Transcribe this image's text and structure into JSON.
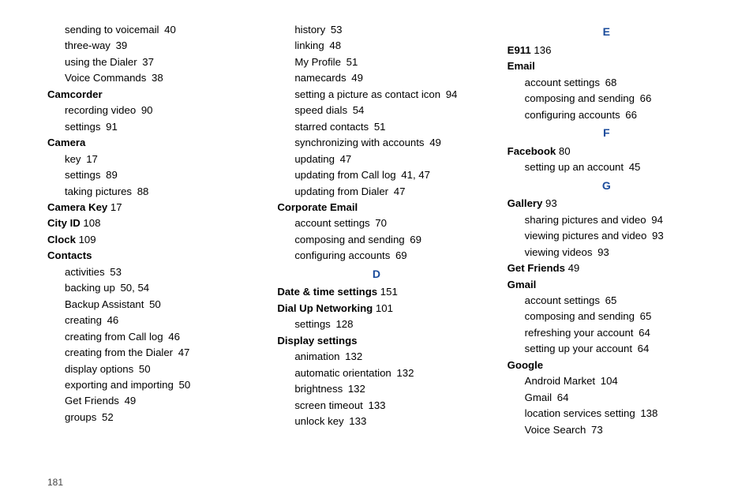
{
  "pageNumber": "181",
  "letters": {
    "D": "D",
    "E": "E",
    "F": "F",
    "G": "G"
  },
  "col1": [
    {
      "t": "sub",
      "label": "sending to voicemail",
      "page": "40"
    },
    {
      "t": "sub",
      "label": "three-way",
      "page": "39"
    },
    {
      "t": "sub",
      "label": "using the Dialer",
      "page": "37"
    },
    {
      "t": "sub",
      "label": "Voice Commands",
      "page": "38"
    },
    {
      "t": "topic",
      "label": "Camcorder"
    },
    {
      "t": "sub",
      "label": "recording video",
      "page": "90"
    },
    {
      "t": "sub",
      "label": "settings",
      "page": "91"
    },
    {
      "t": "topic",
      "label": "Camera"
    },
    {
      "t": "sub",
      "label": "key",
      "page": "17"
    },
    {
      "t": "sub",
      "label": "settings",
      "page": "89"
    },
    {
      "t": "sub",
      "label": "taking pictures",
      "page": "88"
    },
    {
      "t": "topic",
      "label": "Camera Key",
      "page": "17"
    },
    {
      "t": "topic",
      "label": "City ID",
      "page": "108"
    },
    {
      "t": "topic",
      "label": "Clock",
      "page": "109"
    },
    {
      "t": "topic",
      "label": "Contacts"
    },
    {
      "t": "sub",
      "label": "activities",
      "page": "53"
    },
    {
      "t": "sub",
      "label": "backing up",
      "page": "50, 54"
    },
    {
      "t": "sub",
      "label": "Backup Assistant",
      "page": "50"
    },
    {
      "t": "sub",
      "label": "creating",
      "page": "46"
    },
    {
      "t": "sub",
      "label": "creating from Call log",
      "page": "46"
    },
    {
      "t": "sub",
      "label": "creating from the Dialer",
      "page": "47"
    },
    {
      "t": "sub",
      "label": "display options",
      "page": "50"
    },
    {
      "t": "sub",
      "label": "exporting and importing",
      "page": "50"
    },
    {
      "t": "sub",
      "label": "Get Friends",
      "page": "49"
    },
    {
      "t": "sub",
      "label": "groups",
      "page": "52"
    }
  ],
  "col2": [
    {
      "t": "sub",
      "label": "history",
      "page": "53"
    },
    {
      "t": "sub",
      "label": "linking",
      "page": "48"
    },
    {
      "t": "sub",
      "label": "My Profile",
      "page": "51"
    },
    {
      "t": "sub",
      "label": "namecards",
      "page": "49"
    },
    {
      "t": "sub",
      "label": "setting a picture as contact icon",
      "page": "94"
    },
    {
      "t": "sub",
      "label": "speed dials",
      "page": "54"
    },
    {
      "t": "sub",
      "label": "starred contacts",
      "page": "51"
    },
    {
      "t": "sub",
      "label": "synchronizing with accounts",
      "page": "49"
    },
    {
      "t": "sub",
      "label": "updating",
      "page": "47"
    },
    {
      "t": "sub",
      "label": "updating from Call log",
      "page": "41, 47"
    },
    {
      "t": "sub",
      "label": "updating from Dialer",
      "page": "47"
    },
    {
      "t": "topic",
      "label": "Corporate Email"
    },
    {
      "t": "sub",
      "label": "account settings",
      "page": "70"
    },
    {
      "t": "sub",
      "label": "composing and sending",
      "page": "69"
    },
    {
      "t": "sub",
      "label": "configuring accounts",
      "page": "69"
    },
    {
      "t": "letter",
      "key": "D"
    },
    {
      "t": "topic",
      "label": "Date & time settings",
      "page": "151"
    },
    {
      "t": "topic",
      "label": "Dial Up Networking",
      "page": "101"
    },
    {
      "t": "sub",
      "label": "settings",
      "page": "128"
    },
    {
      "t": "topic",
      "label": "Display settings"
    },
    {
      "t": "sub",
      "label": "animation",
      "page": "132"
    },
    {
      "t": "sub",
      "label": "automatic orientation",
      "page": "132"
    },
    {
      "t": "sub",
      "label": "brightness",
      "page": "132"
    },
    {
      "t": "sub",
      "label": "screen timeout",
      "page": "133"
    },
    {
      "t": "sub",
      "label": "unlock key",
      "page": "133"
    }
  ],
  "col3": [
    {
      "t": "letter",
      "key": "E"
    },
    {
      "t": "topic",
      "label": "E911",
      "page": "136"
    },
    {
      "t": "topic",
      "label": "Email"
    },
    {
      "t": "sub",
      "label": "account settings",
      "page": "68"
    },
    {
      "t": "sub",
      "label": "composing and sending",
      "page": "66"
    },
    {
      "t": "sub",
      "label": "configuring accounts",
      "page": "66"
    },
    {
      "t": "letter",
      "key": "F"
    },
    {
      "t": "topic",
      "label": "Facebook",
      "page": "80"
    },
    {
      "t": "sub",
      "label": "setting up an account",
      "page": "45"
    },
    {
      "t": "letter",
      "key": "G"
    },
    {
      "t": "topic",
      "label": "Gallery",
      "page": "93"
    },
    {
      "t": "sub",
      "label": "sharing pictures and video",
      "page": "94"
    },
    {
      "t": "sub",
      "label": "viewing pictures and video",
      "page": "93"
    },
    {
      "t": "sub",
      "label": "viewing videos",
      "page": "93"
    },
    {
      "t": "topic",
      "label": "Get Friends",
      "page": "49"
    },
    {
      "t": "topic",
      "label": "Gmail"
    },
    {
      "t": "sub",
      "label": "account settings",
      "page": "65"
    },
    {
      "t": "sub",
      "label": "composing and sending",
      "page": "65"
    },
    {
      "t": "sub",
      "label": "refreshing your account",
      "page": "64"
    },
    {
      "t": "sub",
      "label": "setting up your account",
      "page": "64"
    },
    {
      "t": "topic",
      "label": "Google"
    },
    {
      "t": "sub",
      "label": "Android Market",
      "page": "104"
    },
    {
      "t": "sub",
      "label": "Gmail",
      "page": "64"
    },
    {
      "t": "sub",
      "label": "location services setting",
      "page": "138"
    },
    {
      "t": "sub",
      "label": "Voice Search",
      "page": "73"
    }
  ]
}
